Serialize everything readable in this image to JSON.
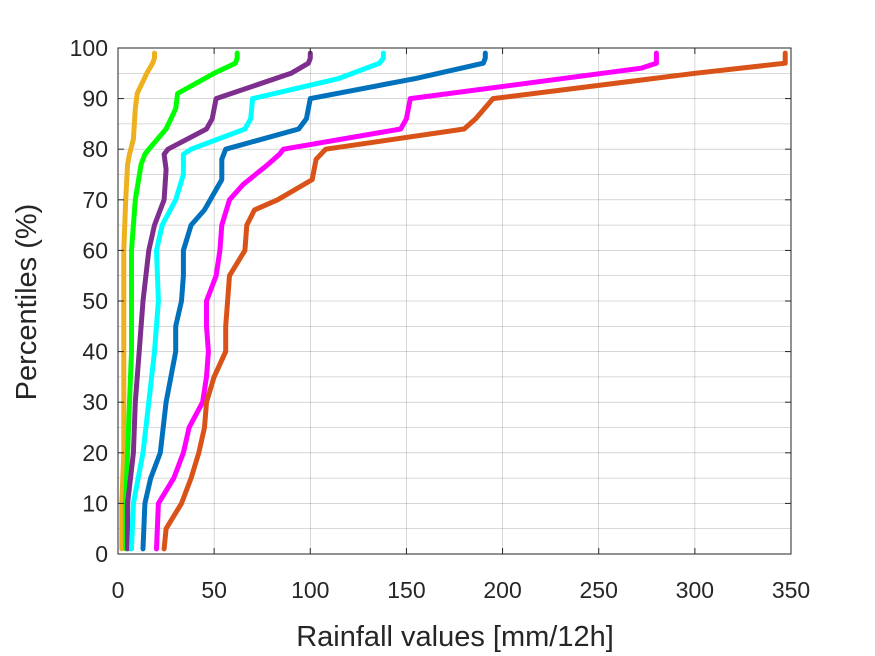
{
  "chart_data": {
    "type": "line",
    "title": "",
    "xlabel": "Rainfall values [mm/12h]",
    "ylabel": "Percentiles (%)",
    "xlim": [
      0,
      350
    ],
    "ylim": [
      0,
      100
    ],
    "xticks": [
      0,
      50,
      100,
      150,
      200,
      250,
      300,
      350
    ],
    "yticks": [
      0,
      10,
      20,
      30,
      40,
      50,
      60,
      70,
      80,
      90,
      100
    ],
    "grid": true,
    "legend": "none",
    "series": [
      {
        "color": "#EDB120",
        "points": [
          [
            2,
            1
          ],
          [
            2,
            10
          ],
          [
            3,
            20
          ],
          [
            3,
            30
          ],
          [
            3,
            40
          ],
          [
            3,
            50
          ],
          [
            3,
            60
          ],
          [
            4,
            70
          ],
          [
            5,
            77
          ],
          [
            6,
            79
          ],
          [
            8,
            82
          ],
          [
            9,
            88
          ],
          [
            10,
            91
          ],
          [
            15,
            95
          ],
          [
            18,
            97
          ],
          [
            19,
            98
          ],
          [
            19,
            99
          ]
        ]
      },
      {
        "color": "#00FF00",
        "points": [
          [
            4,
            1
          ],
          [
            4,
            10
          ],
          [
            5,
            20
          ],
          [
            6,
            30
          ],
          [
            7,
            40
          ],
          [
            7,
            50
          ],
          [
            7,
            60
          ],
          [
            9,
            70
          ],
          [
            12,
            77
          ],
          [
            14,
            79
          ],
          [
            16,
            80
          ],
          [
            25,
            84
          ],
          [
            30,
            88
          ],
          [
            31,
            91
          ],
          [
            50,
            95
          ],
          [
            61,
            97
          ],
          [
            62,
            98
          ],
          [
            62,
            99
          ]
        ]
      },
      {
        "color": "#7E2F8E",
        "points": [
          [
            5,
            1
          ],
          [
            5,
            10
          ],
          [
            8,
            20
          ],
          [
            9,
            30
          ],
          [
            11,
            40
          ],
          [
            13,
            50
          ],
          [
            16,
            60
          ],
          [
            19,
            65
          ],
          [
            24,
            70
          ],
          [
            25,
            76
          ],
          [
            24,
            79
          ],
          [
            26,
            80
          ],
          [
            46,
            84
          ],
          [
            49,
            86
          ],
          [
            51,
            90
          ],
          [
            90,
            95
          ],
          [
            99,
            97
          ],
          [
            100,
            98
          ],
          [
            100,
            99
          ]
        ]
      },
      {
        "color": "#00FFFF",
        "points": [
          [
            7,
            1
          ],
          [
            8,
            10
          ],
          [
            13,
            20
          ],
          [
            16,
            30
          ],
          [
            19,
            40
          ],
          [
            21,
            50
          ],
          [
            20,
            60
          ],
          [
            23,
            65
          ],
          [
            30,
            70
          ],
          [
            34,
            75
          ],
          [
            34,
            79
          ],
          [
            38,
            80
          ],
          [
            66,
            84
          ],
          [
            69,
            86
          ],
          [
            70,
            90
          ],
          [
            115,
            94
          ],
          [
            136,
            97
          ],
          [
            138,
            98
          ],
          [
            138,
            99
          ]
        ]
      },
      {
        "color": "#0072BD",
        "points": [
          [
            13,
            1
          ],
          [
            14,
            10
          ],
          [
            17,
            15
          ],
          [
            22,
            20
          ],
          [
            25,
            30
          ],
          [
            30,
            40
          ],
          [
            30,
            45
          ],
          [
            33,
            50
          ],
          [
            34,
            55
          ],
          [
            34,
            60
          ],
          [
            38,
            65
          ],
          [
            45,
            68
          ],
          [
            54,
            74
          ],
          [
            54,
            78
          ],
          [
            56,
            80
          ],
          [
            94,
            84
          ],
          [
            98,
            86
          ],
          [
            100,
            90
          ],
          [
            155,
            94
          ],
          [
            190,
            97
          ],
          [
            191,
            98
          ],
          [
            191,
            99
          ]
        ]
      },
      {
        "color": "#FF00FF",
        "points": [
          [
            20,
            1
          ],
          [
            21,
            10
          ],
          [
            29,
            15
          ],
          [
            34,
            20
          ],
          [
            37,
            25
          ],
          [
            44,
            30
          ],
          [
            46,
            35
          ],
          [
            47,
            40
          ],
          [
            46,
            45
          ],
          [
            46,
            50
          ],
          [
            51,
            55
          ],
          [
            53,
            60
          ],
          [
            54,
            65
          ],
          [
            58,
            70
          ],
          [
            65,
            73
          ],
          [
            78,
            77
          ],
          [
            84,
            79
          ],
          [
            86,
            80
          ],
          [
            147,
            84
          ],
          [
            150,
            86
          ],
          [
            152,
            90
          ],
          [
            272,
            96
          ],
          [
            280,
            97
          ],
          [
            280,
            98
          ],
          [
            280,
            99
          ]
        ]
      },
      {
        "color": "#D95319",
        "points": [
          [
            24,
            1
          ],
          [
            25,
            5
          ],
          [
            33,
            10
          ],
          [
            38,
            15
          ],
          [
            42,
            20
          ],
          [
            45,
            25
          ],
          [
            46,
            30
          ],
          [
            50,
            35
          ],
          [
            56,
            40
          ],
          [
            56,
            45
          ],
          [
            57,
            50
          ],
          [
            58,
            55
          ],
          [
            66,
            60
          ],
          [
            67,
            65
          ],
          [
            71,
            68
          ],
          [
            83,
            70
          ],
          [
            101,
            74
          ],
          [
            103,
            78
          ],
          [
            108,
            80
          ],
          [
            180,
            84
          ],
          [
            186,
            86
          ],
          [
            195,
            90
          ],
          [
            300,
            95
          ],
          [
            347,
            97
          ],
          [
            347,
            99
          ]
        ]
      }
    ]
  }
}
